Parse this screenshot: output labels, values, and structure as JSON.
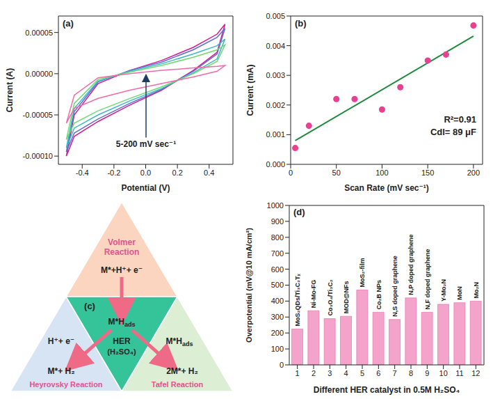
{
  "chart_data": [
    {
      "type": "line",
      "panel": "(a)",
      "x_label": "Potential (V)",
      "y_label": "Current (A)",
      "annotations": [
        "5-200 mV sec⁻¹"
      ],
      "xlim": [
        -0.55,
        0.55
      ],
      "xticks": [
        -0.4,
        -0.2,
        {
          "value": 0,
          "label": "0.0"
        },
        0.2,
        0.4
      ],
      "ylim": [
        -0.00011,
        7e-05
      ],
      "yticks": [
        {
          "value": -0.0001,
          "label": "-0.00010"
        },
        {
          "value": -5e-05,
          "label": "-0.00005"
        },
        {
          "value": 0,
          "label": "0.00000"
        },
        {
          "value": 5e-05,
          "label": "0.00005"
        }
      ],
      "series": [
        {
          "color": "#d81b8c",
          "x": [
            -0.5,
            -0.45,
            -0.3,
            -0.1,
            0.1,
            0.3,
            0.45,
            0.5,
            0.45,
            0.3,
            0.1,
            -0.1,
            -0.3,
            -0.45,
            -0.5
          ],
          "values": [
            -0.0001,
            -5e-05,
            -1.2e-05,
            4e-06,
            1.6e-05,
            3.2e-05,
            4.8e-05,
            6e-05,
            2.6e-05,
            4e-06,
            -2e-05,
            -3.8e-05,
            -5.8e-05,
            -7.6e-05,
            -0.0001
          ]
        },
        {
          "color": "#5b6fd6",
          "x": [
            -0.5,
            -0.45,
            -0.3,
            -0.1,
            0.1,
            0.3,
            0.45,
            0.5,
            0.45,
            0.3,
            0.1,
            -0.1,
            -0.3,
            -0.45,
            -0.5
          ],
          "values": [
            -9.5e-05,
            -4.6e-05,
            -1e-05,
            4e-06,
            1.4e-05,
            2.9e-05,
            4.4e-05,
            5.5e-05,
            2.4e-05,
            3e-06,
            -1.9e-05,
            -3.6e-05,
            -5.5e-05,
            -7.2e-05,
            -9.5e-05
          ]
        },
        {
          "color": "#3ab7c8",
          "x": [
            -0.5,
            -0.45,
            -0.3,
            -0.1,
            0.1,
            0.3,
            0.45,
            0.5,
            0.45,
            0.3,
            0.1,
            -0.1,
            -0.3,
            -0.45,
            -0.5
          ],
          "values": [
            -9e-05,
            -4.2e-05,
            -9e-06,
            3e-06,
            1.2e-05,
            2.4e-05,
            3.4e-05,
            4.2e-05,
            1.8e-05,
            1e-06,
            -1.8e-05,
            -3.3e-05,
            -5e-05,
            -6.6e-05,
            -9e-05
          ]
        },
        {
          "color": "#6fd96f",
          "x": [
            -0.5,
            -0.45,
            -0.3,
            -0.1,
            0.1,
            0.3,
            0.45,
            0.5,
            0.45,
            0.3,
            0.1,
            -0.1,
            -0.3,
            -0.45,
            -0.5
          ],
          "values": [
            -8e-05,
            -3.6e-05,
            -7e-06,
            2e-06,
            1e-05,
            2e-05,
            2.9e-05,
            3.5e-05,
            1.5e-05,
            0,
            -1.6e-05,
            -3e-05,
            -4.5e-05,
            -6e-05,
            -8e-05
          ]
        },
        {
          "color": "#f06aa8",
          "x": [
            -0.5,
            -0.45,
            -0.3,
            -0.1,
            0.1,
            0.3,
            0.45,
            0.5,
            0.45,
            0.3,
            0.1,
            -0.1,
            -0.3,
            -0.45,
            -0.5
          ],
          "values": [
            -6e-05,
            -2.6e-05,
            -5e-06,
            0,
            4e-06,
            7e-06,
            9e-06,
            1e-05,
            3e-06,
            -4e-06,
            -1.2e-05,
            -2e-05,
            -3e-05,
            -4.2e-05,
            -6e-05
          ]
        }
      ]
    },
    {
      "type": "scatter",
      "panel": "(b)",
      "x_label": "Scan Rate (mV sec⁻¹)",
      "y_label": "Current (mA)",
      "annotations": [
        "R²=0.91",
        "Cdl= 89 μF"
      ],
      "xlim": [
        0,
        210
      ],
      "xticks": [
        0,
        50,
        100,
        150,
        200
      ],
      "ylim": [
        0,
        0.005
      ],
      "yticks": [
        {
          "value": 0,
          "label": "0.000"
        },
        {
          "value": 0.001,
          "label": "0.001"
        },
        {
          "value": 0.002,
          "label": "0.002"
        },
        {
          "value": 0.003,
          "label": "0.003"
        },
        {
          "value": 0.004,
          "label": "0.004"
        },
        {
          "value": 0.005,
          "label": "0.005"
        }
      ],
      "series": [
        {
          "type": "scatter",
          "color": "#e8418f",
          "marker": "circle",
          "x": [
            5,
            20,
            50,
            70,
            100,
            120,
            150,
            170,
            200
          ],
          "values": [
            0.00055,
            0.0013,
            0.0022,
            0.0022,
            0.00185,
            0.0026,
            0.0035,
            0.0037,
            0.00468
          ]
        },
        {
          "type": "line",
          "color": "#1f8a3b",
          "x": [
            5,
            200
          ],
          "values": [
            0.0008,
            0.00432
          ]
        }
      ]
    },
    {
      "type": "bar",
      "panel": "(d)",
      "x_label": "Different HER catalyst in 0.5M H₂SO₄",
      "y_label": "Overpotential (mV@10 mA/cm²)",
      "categories": [
        "1",
        "2",
        "3",
        "4",
        "5",
        "6",
        "7",
        "8",
        "9",
        "10",
        "11",
        "12"
      ],
      "values": [
        225,
        340,
        290,
        305,
        470,
        330,
        285,
        420,
        330,
        380,
        390,
        400
      ],
      "annotations": [
        "MoS₂QDs/Ti₃C₂Tₓ",
        "Ni-Mo-FG",
        "Co₃O₄/Ti₃C₂",
        "MOD@NFs",
        "MoS₂-film",
        "Co₂B NPs",
        "N,S doped graphene",
        "N,P doped graphene",
        "N,F doped graphene",
        "Y-Mo₂N",
        "MoN",
        "Mo₂N"
      ],
      "color": "#f4a3cb",
      "ylim": [
        0,
        1000
      ],
      "yticks": [
        0,
        100,
        200,
        300,
        400,
        500,
        600,
        700,
        800,
        900,
        1000
      ]
    }
  ],
  "diagram": {
    "panel": "(c)",
    "top": {
      "name": "Volmer Reaction",
      "equation": "M*+H⁺+ e⁻"
    },
    "center": {
      "species": "M*H",
      "species_sub": "ads",
      "name": "HER",
      "medium": "(H₂SO₄)"
    },
    "left": {
      "name": "Heyrovsky Reaction",
      "reactant": "H⁺+ e⁻",
      "product": "M*+ H₂"
    },
    "right": {
      "name": "Tafel Reaction",
      "reactant": "M*H",
      "reactant_sub": "ads",
      "product": "2M*+ H₂"
    }
  }
}
